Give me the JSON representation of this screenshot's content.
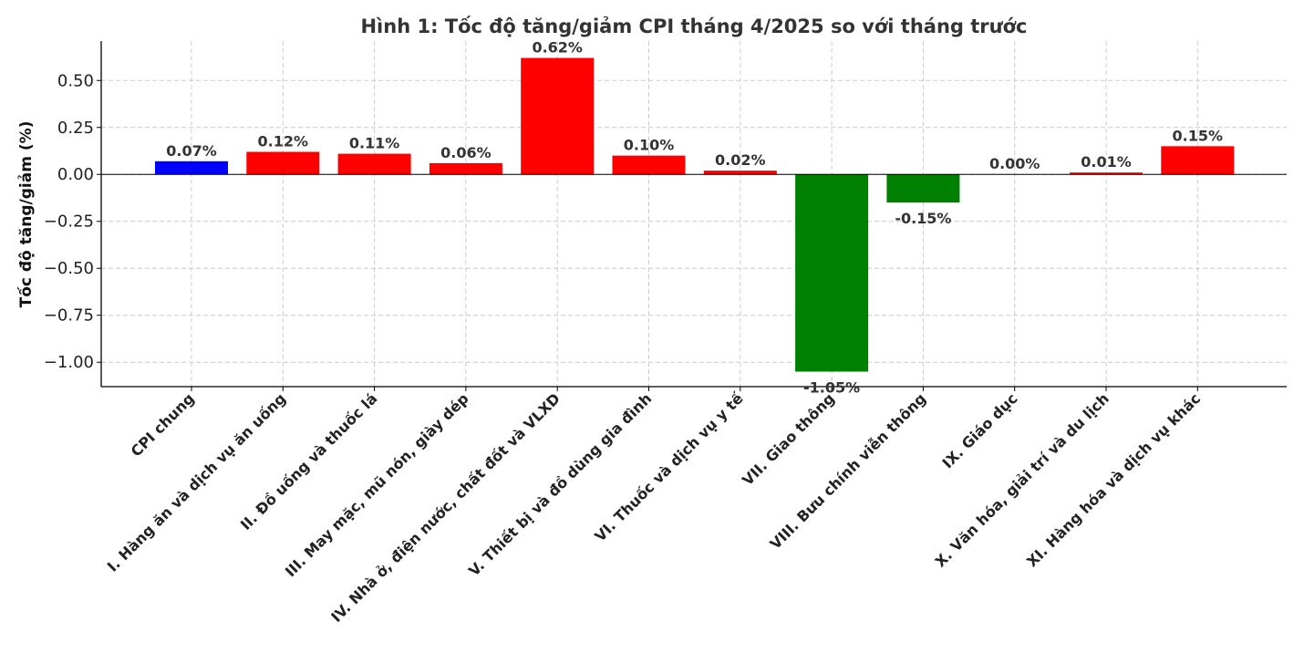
{
  "chart_data": {
    "type": "bar",
    "title": "Hình 1: Tốc độ tăng/giảm CPI tháng 4/2025 so với tháng trước",
    "xlabel": "",
    "ylabel": "Tốc độ tăng/giảm (%)",
    "ylim": [
      -1.13,
      0.71
    ],
    "yticks": [
      0.5,
      0.25,
      0.0,
      -0.25,
      -0.5,
      -0.75,
      -1.0
    ],
    "ytick_labels": [
      "0.50",
      "0.25",
      "0.00",
      "−0.25",
      "−0.50",
      "−0.75",
      "−1.00"
    ],
    "grid": true,
    "categories": [
      "CPI chung",
      "I. Hàng ăn và dịch vụ ăn uống",
      "II. Đồ uống và thuốc lá",
      "III. May mặc, mũ nón, giày dép",
      "IV. Nhà ở, điện nước, chất đốt và VLXD",
      "V. Thiết bị và đồ dùng gia đình",
      "VI. Thuốc và dịch vụ y tế",
      "VII. Giao thông",
      "VIII. Bưu chính viễn thông",
      "IX. Giáo dục",
      "X. Văn hóa, giải trí và du lịch",
      "XI. Hàng hóa và dịch vụ khác"
    ],
    "values": [
      0.07,
      0.12,
      0.11,
      0.06,
      0.62,
      0.1,
      0.02,
      -1.05,
      -0.15,
      0.0,
      0.01,
      0.15
    ],
    "data_labels": [
      "0.07%",
      "0.12%",
      "0.11%",
      "0.06%",
      "0.62%",
      "0.10%",
      "0.02%",
      "-1.05%",
      "-0.15%",
      "0.00%",
      "0.01%",
      "0.15%"
    ],
    "colors": {
      "overall": "#0000ff",
      "increase": "#ff0000",
      "decrease": "#008000"
    }
  }
}
